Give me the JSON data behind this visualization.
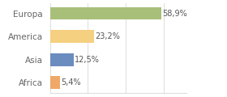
{
  "categories": [
    "Africa",
    "Asia",
    "America",
    "Europa"
  ],
  "values": [
    5.4,
    12.5,
    23.2,
    58.9
  ],
  "labels": [
    "5,4%",
    "12,5%",
    "23,2%",
    "58,9%"
  ],
  "bar_colors": [
    "#f0a868",
    "#6b8cbf",
    "#f5d080",
    "#a8bf7a"
  ],
  "xlim": [
    0,
    72
  ],
  "background_color": "#ffffff",
  "label_fontsize": 7.0,
  "tick_fontsize": 7.5,
  "grid_color": "#dddddd",
  "spine_color": "#dddddd"
}
